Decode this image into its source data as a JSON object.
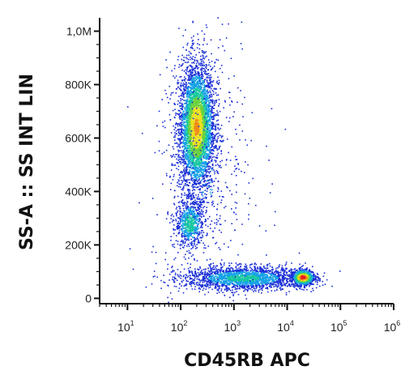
{
  "chart_data": {
    "type": "scatter",
    "title": "",
    "xlabel": "CD45RB APC",
    "ylabel": "SS-A :: SS INT LIN",
    "x_scale": "log",
    "xlim": [
      3,
      1000000
    ],
    "ylim": [
      -20000,
      1050000
    ],
    "x_ticks": [
      {
        "base": "10",
        "exp": "1",
        "value": 10
      },
      {
        "base": "10",
        "exp": "2",
        "value": 100
      },
      {
        "base": "10",
        "exp": "3",
        "value": 1000
      },
      {
        "base": "10",
        "exp": "4",
        "value": 10000
      },
      {
        "base": "10",
        "exp": "5",
        "value": 100000
      },
      {
        "base": "10",
        "exp": "6",
        "value": 1000000
      }
    ],
    "y_ticks": [
      {
        "label": "0",
        "value": 0
      },
      {
        "label": "200K",
        "value": 200000
      },
      {
        "label": "400K",
        "value": 400000
      },
      {
        "label": "600K",
        "value": 600000
      },
      {
        "label": "800K",
        "value": 800000
      },
      {
        "label": "1,0M",
        "value": 1000000
      }
    ],
    "color_scale": [
      "#1a2fd6",
      "#14a0e6",
      "#18c7a0",
      "#6ad23c",
      "#e8e020",
      "#f08a18",
      "#e81e1e"
    ],
    "grid": false,
    "populations": [
      {
        "n": 4200,
        "x_center": 200,
        "x_spread_log": 0.17,
        "y_center": 640000,
        "y_spread": 120000,
        "peak_density": 0.75
      },
      {
        "n": 700,
        "x_center": 150,
        "x_spread_log": 0.14,
        "y_center": 280000,
        "y_spread": 45000,
        "peak_density": 0.4
      },
      {
        "n": 2000,
        "x_center": 1500,
        "x_spread_log": 0.55,
        "y_center": 75000,
        "y_spread": 22000,
        "peak_density": 0.35
      },
      {
        "n": 900,
        "x_center": 20000,
        "x_spread_log": 0.11,
        "y_center": 78000,
        "y_spread": 15000,
        "peak_density": 1.0
      },
      {
        "n": 500,
        "x_center": 300,
        "x_spread_log": 0.5,
        "y_center": 450000,
        "y_spread": 300000,
        "peak_density": 0.15
      }
    ]
  }
}
